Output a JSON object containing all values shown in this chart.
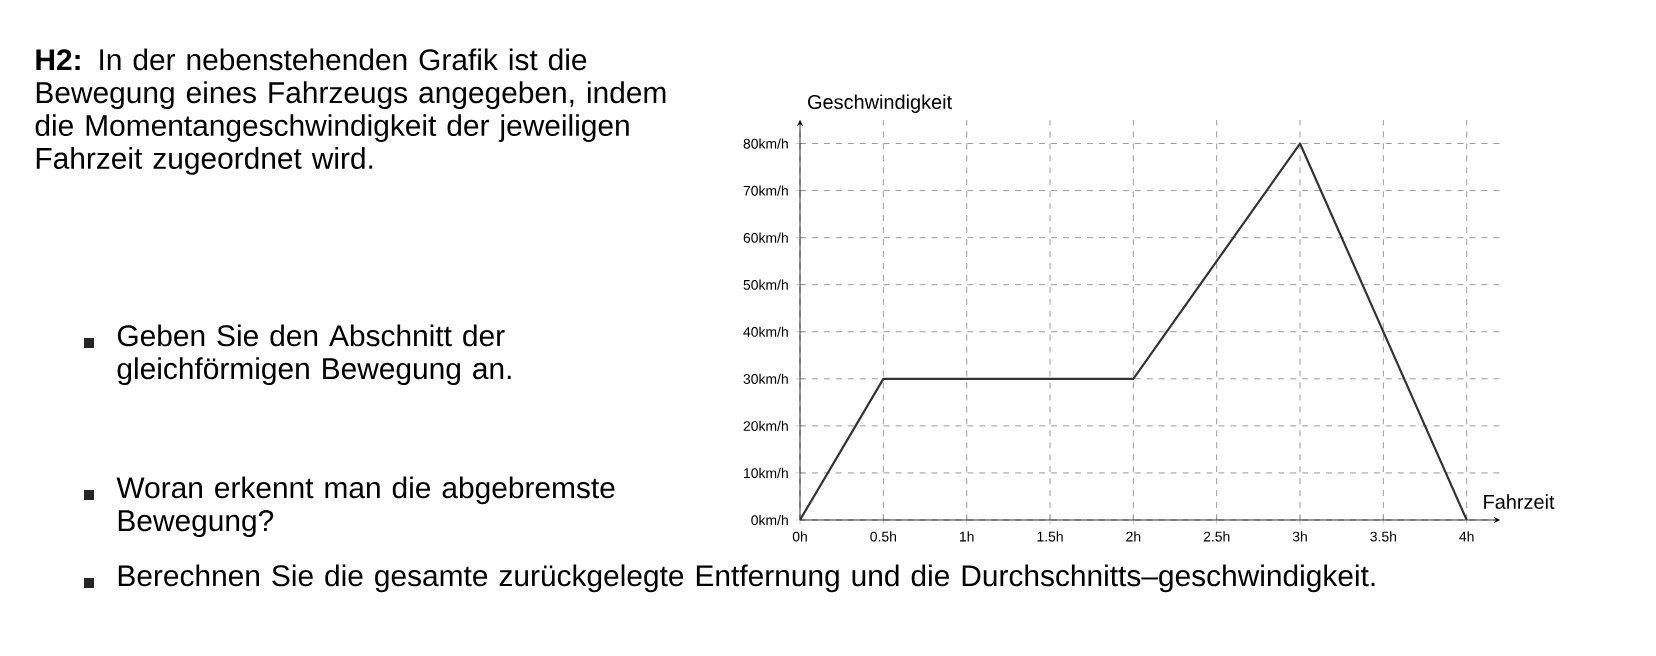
{
  "chart_data": {
    "type": "line",
    "title": "**H2:** In der nebenstehenden Grafik ist die Bewegung eines Fahrzeugs angegeben, indem die Momentangeschwindigkeit der jeweiligen Fahrzeit zugeordnet wird.",
    "annotations": [
      "Geben Sie den Abschnitt der gleichförmigen Bewegung an.",
      "Woran erkennt man die abgebremste Bewegung?",
      "Berechnen Sie die gesamte zurückgelegte Entfernung und die Durchschnitts–geschwindigkeit."
    ],
    "xlabel": "Fahrzeit",
    "ylabel": "Geschwindigkeit",
    "x": [
      0,
      0.5,
      2,
      3,
      4
    ],
    "series": [
      {
        "color": "#333333",
        "values": [
          0,
          30,
          30,
          80,
          0
        ]
      }
    ],
    "xlim": [
      0,
      4.2
    ],
    "ylim": [
      0,
      85
    ],
    "xticks": [
      {
        "value": 0,
        "label": "0h"
      },
      {
        "value": 0.5,
        "label": "0.5h"
      },
      {
        "value": 1,
        "label": "1h"
      },
      {
        "value": 1.5,
        "label": "1.5h"
      },
      {
        "value": 2,
        "label": "2h"
      },
      {
        "value": 2.5,
        "label": "2.5h"
      },
      {
        "value": 3,
        "label": "3h"
      },
      {
        "value": 3.5,
        "label": "3.5h"
      },
      {
        "value": 4,
        "label": "4h"
      }
    ],
    "yticks": [
      {
        "value": 0,
        "label": "0km/h"
      },
      {
        "value": 10,
        "label": "10km/h"
      },
      {
        "value": 20,
        "label": "20km/h"
      },
      {
        "value": 30,
        "label": "30km/h"
      },
      {
        "value": 40,
        "label": "40km/h"
      },
      {
        "value": 50,
        "label": "50km/h"
      },
      {
        "value": 60,
        "label": "60km/h"
      },
      {
        "value": 70,
        "label": "70km/h"
      },
      {
        "value": 80,
        "label": "80km/h"
      }
    ],
    "grid": true,
    "marker": "none",
    "line_style": "solid"
  }
}
